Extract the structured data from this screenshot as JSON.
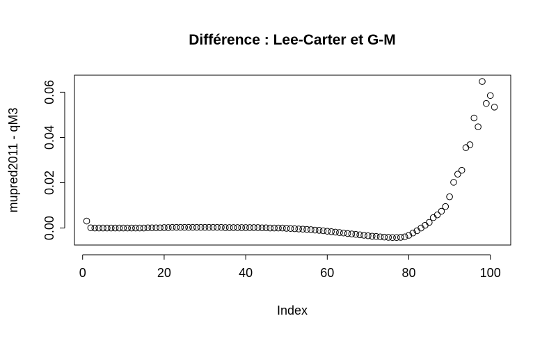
{
  "chart_data": {
    "type": "scatter",
    "title": "Différence : Lee-Carter et G-M",
    "xlabel": "Index",
    "ylabel": "mupred2011 - qM3",
    "xlim": [
      -2,
      105
    ],
    "ylim": [
      -0.0075,
      0.0675
    ],
    "x_ticks": [
      0,
      20,
      40,
      60,
      80,
      100
    ],
    "x_tick_labels": [
      "0",
      "20",
      "40",
      "60",
      "80",
      "100"
    ],
    "y_ticks": [
      0.0,
      0.02,
      0.04,
      0.06
    ],
    "y_tick_labels": [
      "0.00",
      "0.02",
      "0.04",
      "0.06"
    ],
    "marker": "open-circle",
    "grid": false,
    "x": [
      1,
      2,
      3,
      4,
      5,
      6,
      7,
      8,
      9,
      10,
      11,
      12,
      13,
      14,
      15,
      16,
      17,
      18,
      19,
      20,
      21,
      22,
      23,
      24,
      25,
      26,
      27,
      28,
      29,
      30,
      31,
      32,
      33,
      34,
      35,
      36,
      37,
      38,
      39,
      40,
      41,
      42,
      43,
      44,
      45,
      46,
      47,
      48,
      49,
      50,
      51,
      52,
      53,
      54,
      55,
      56,
      57,
      58,
      59,
      60,
      61,
      62,
      63,
      64,
      65,
      66,
      67,
      68,
      69,
      70,
      71,
      72,
      73,
      74,
      75,
      76,
      77,
      78,
      79,
      80,
      81,
      82,
      83,
      84,
      85,
      86,
      87,
      88,
      89,
      90,
      91,
      92,
      93,
      94,
      95,
      96,
      97,
      98,
      99,
      100,
      101
    ],
    "y": [
      0.0031,
      0.0001,
      0.0,
      0.0,
      0.0,
      0.0,
      0.0,
      0.0,
      0.0,
      0.0,
      0.0,
      0.0,
      0.0,
      0.0,
      0.0,
      0.0001,
      0.0001,
      0.0001,
      0.0001,
      0.0002,
      0.0002,
      0.0003,
      0.0003,
      0.0003,
      0.0003,
      0.0003,
      0.0003,
      0.0003,
      0.0003,
      0.0003,
      0.0003,
      0.0003,
      0.0003,
      0.0003,
      0.0002,
      0.0002,
      0.0002,
      0.0002,
      0.0002,
      0.0002,
      0.0002,
      0.0002,
      0.0002,
      0.0001,
      0.0001,
      0.0,
      0.0,
      0.0,
      0.0,
      -0.0001,
      -0.0002,
      -0.0003,
      -0.0004,
      -0.0005,
      -0.0006,
      -0.0007,
      -0.0009,
      -0.001,
      -0.0012,
      -0.0014,
      -0.0016,
      -0.0018,
      -0.002,
      -0.0022,
      -0.0024,
      -0.0026,
      -0.0028,
      -0.003,
      -0.0032,
      -0.0034,
      -0.0036,
      -0.0037,
      -0.0039,
      -0.004,
      -0.0041,
      -0.0042,
      -0.0042,
      -0.0041,
      -0.0039,
      -0.0032,
      -0.0022,
      -0.0012,
      0.0,
      0.0012,
      0.0025,
      0.0046,
      0.0058,
      0.0074,
      0.0095,
      0.0138,
      0.0202,
      0.0238,
      0.0255,
      0.0355,
      0.0368,
      0.0486,
      0.0447,
      0.0647,
      0.055,
      0.0585,
      0.0534
    ]
  }
}
